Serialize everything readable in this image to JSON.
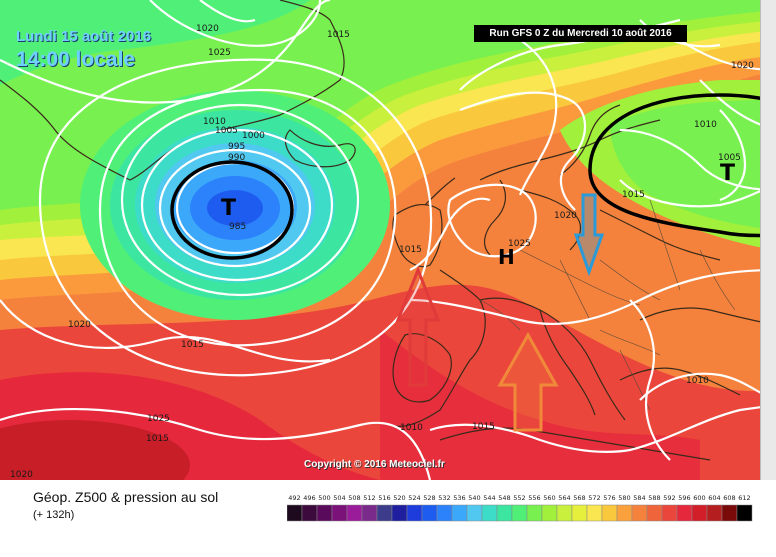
{
  "header": {
    "date": "Lundi 15 août 2016",
    "time": "14:00 locale",
    "run": "Run GFS 0 Z du Mercredi 10 août 2016",
    "copyright": "Copyright © 2016 Meteociel.fr"
  },
  "legend": {
    "title": "Géop. Z500 & pression au sol",
    "subtitle": "(+ 132h)",
    "scale_values": [
      "492",
      "496",
      "500",
      "504",
      "508",
      "512",
      "516",
      "520",
      "524",
      "528",
      "532",
      "536",
      "540",
      "544",
      "548",
      "552",
      "556",
      "560",
      "564",
      "568",
      "572",
      "576",
      "580",
      "584",
      "588",
      "592",
      "596",
      "600",
      "604",
      "608",
      "612"
    ],
    "scale_colors": [
      "#1e0a1e",
      "#3c0a3c",
      "#5a0a5a",
      "#7a127a",
      "#9a1c9a",
      "#7a2a8a",
      "#3c3c8a",
      "#1e1e9e",
      "#1e3cdc",
      "#1e5cf0",
      "#2c82fa",
      "#3ca8fa",
      "#50c8f0",
      "#3cdcc8",
      "#3ce6a0",
      "#50f078",
      "#78f050",
      "#a0f03c",
      "#c8f03c",
      "#e6f03c",
      "#fae650",
      "#fac83c",
      "#faa03c",
      "#f5823c",
      "#f0643c",
      "#eb463c",
      "#e6283c",
      "#d21e28",
      "#b41e1e",
      "#7a0a0a",
      "#000000"
    ]
  },
  "map": {
    "pressure_labels": [
      {
        "v": "1020"
      },
      {
        "v": "1025"
      },
      {
        "v": "1015"
      },
      {
        "v": "1010"
      },
      {
        "v": "1005"
      },
      {
        "v": "1000"
      },
      {
        "v": "995"
      },
      {
        "v": "990"
      },
      {
        "v": "985"
      },
      {
        "v": "1020"
      },
      {
        "v": "1015"
      },
      {
        "v": "1025"
      },
      {
        "v": "1015"
      },
      {
        "v": "1010"
      },
      {
        "v": "1015"
      },
      {
        "v": "1025"
      },
      {
        "v": "1020"
      },
      {
        "v": "1010"
      },
      {
        "v": "1005"
      },
      {
        "v": "1015"
      },
      {
        "v": "1020"
      },
      {
        "v": "1015"
      },
      {
        "v": "1010"
      },
      {
        "v": "1020"
      }
    ],
    "centers": [
      {
        "letter": "T",
        "kind": "low"
      },
      {
        "letter": "H",
        "kind": "high"
      },
      {
        "letter": "T",
        "kind": "low"
      }
    ],
    "arrows": [
      {
        "color": "#e03a3a",
        "direction": "up"
      },
      {
        "color": "#f08a3a",
        "direction": "up"
      },
      {
        "color": "#2a9ad8",
        "direction": "down"
      }
    ]
  }
}
